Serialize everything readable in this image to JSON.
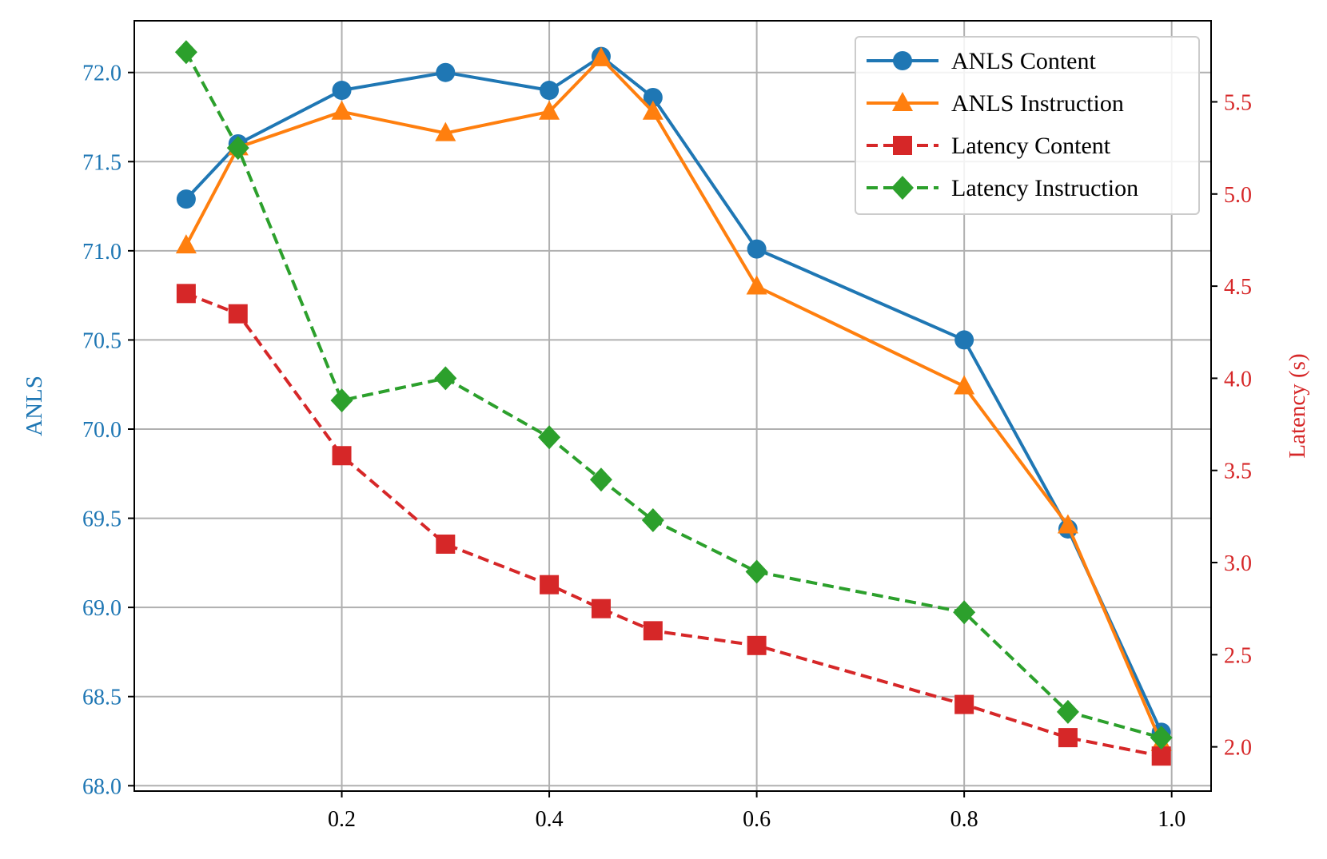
{
  "chart_data": {
    "type": "line",
    "title": "",
    "xlabel": "",
    "y_left_label": "ANLS",
    "y_right_label": "Latency (s)",
    "xlim": [
      0.0,
      1.038
    ],
    "y_left_lim": [
      67.97,
      72.29
    ],
    "y_right_lim": [
      1.76,
      5.94
    ],
    "x_ticks": [
      0.2,
      0.4,
      0.6,
      0.8,
      1.0
    ],
    "x_tick_labels": [
      "0.2",
      "0.4",
      "0.6",
      "0.8",
      "1.0"
    ],
    "y_left_ticks": [
      68.0,
      68.5,
      69.0,
      69.5,
      70.0,
      70.5,
      71.0,
      71.5,
      72.0
    ],
    "y_left_tick_labels": [
      "68.0",
      "68.5",
      "69.0",
      "69.5",
      "70.0",
      "70.5",
      "71.0",
      "71.5",
      "72.0"
    ],
    "y_right_ticks": [
      2.0,
      2.5,
      3.0,
      3.5,
      4.0,
      4.5,
      5.0,
      5.5
    ],
    "y_right_tick_labels": [
      "2.0",
      "2.5",
      "3.0",
      "3.5",
      "4.0",
      "4.5",
      "5.0",
      "5.5"
    ],
    "grid": true,
    "legend_position": "top-right",
    "x": [
      0.05,
      0.1,
      0.2,
      0.3,
      0.4,
      0.45,
      0.5,
      0.6,
      0.8,
      0.9,
      0.99
    ],
    "series": [
      {
        "name": "ANLS Content",
        "axis": "left",
        "marker": "circle",
        "line_style": "solid",
        "color": "#1f77b4",
        "values": [
          71.29,
          71.6,
          71.9,
          72.0,
          71.9,
          72.09,
          71.86,
          71.01,
          70.5,
          69.44,
          68.3
        ]
      },
      {
        "name": "ANLS Instruction",
        "axis": "left",
        "marker": "triangle",
        "line_style": "solid",
        "color": "#ff7f0e",
        "values": [
          71.03,
          71.58,
          71.78,
          71.66,
          71.78,
          72.08,
          71.78,
          70.8,
          70.24,
          69.46,
          68.24
        ]
      },
      {
        "name": "Latency Content",
        "axis": "right",
        "marker": "square",
        "line_style": "dashed",
        "color": "#d62728",
        "values": [
          4.46,
          4.35,
          3.58,
          3.1,
          2.88,
          2.75,
          2.63,
          2.55,
          2.23,
          2.05,
          1.95
        ]
      },
      {
        "name": "Latency Instruction",
        "axis": "right",
        "marker": "diamond",
        "line_style": "dashed",
        "color": "#2ca02c",
        "values": [
          5.77,
          5.25,
          3.88,
          4.0,
          3.68,
          3.45,
          3.23,
          2.95,
          2.73,
          2.19,
          2.05
        ]
      }
    ],
    "colors": {
      "left_axis": "#1f77b4",
      "right_axis": "#d62728",
      "grid": "#b0b0b0"
    }
  }
}
